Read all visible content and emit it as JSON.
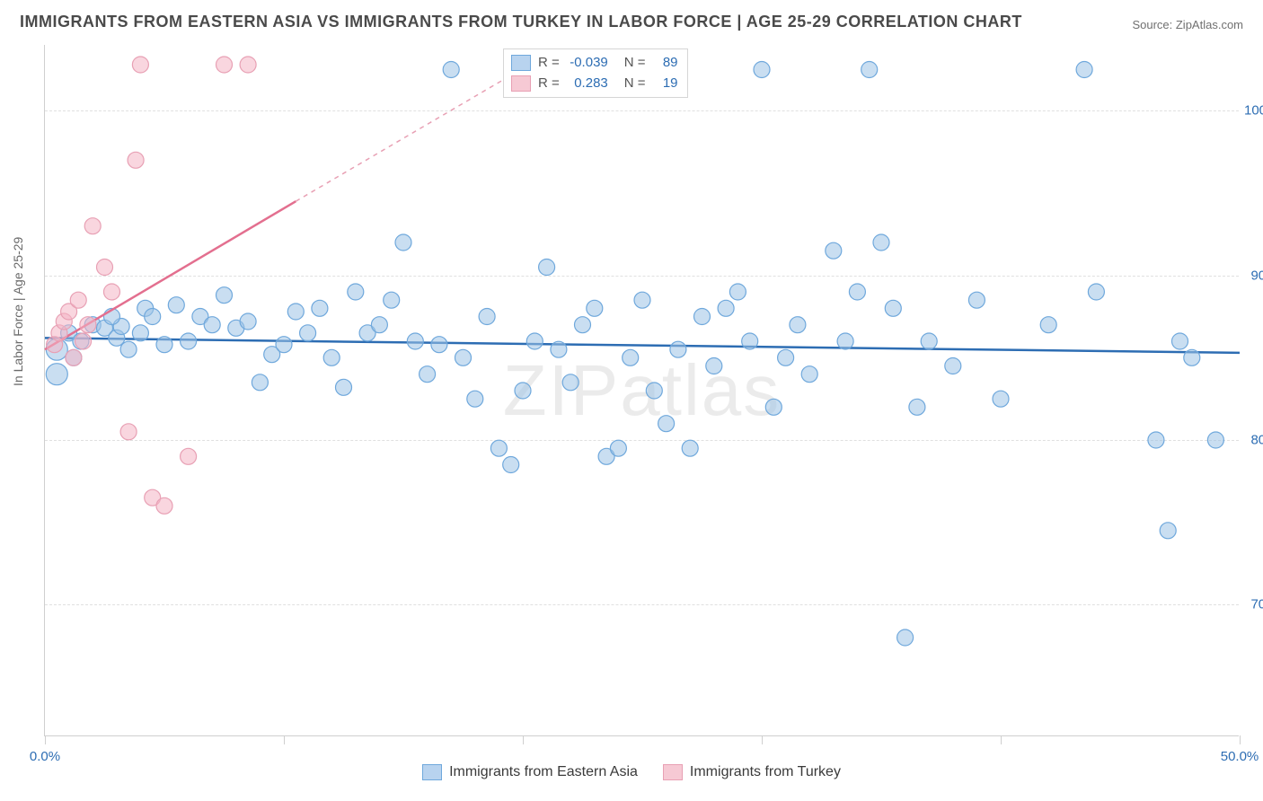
{
  "title": "IMMIGRANTS FROM EASTERN ASIA VS IMMIGRANTS FROM TURKEY IN LABOR FORCE | AGE 25-29 CORRELATION CHART",
  "source": "Source: ZipAtlas.com",
  "watermark": "ZIPatlas",
  "ylabel": "In Labor Force | Age 25-29",
  "chart": {
    "type": "scatter",
    "xlim": [
      0,
      50
    ],
    "ylim": [
      62,
      104
    ],
    "xticks": [
      0,
      10,
      20,
      30,
      40,
      50
    ],
    "xtick_labels": [
      "0.0%",
      "",
      "",
      "",
      "",
      "50.0%"
    ],
    "yticks": [
      70,
      80,
      90,
      100
    ],
    "ytick_labels": [
      "70.0%",
      "80.0%",
      "90.0%",
      "100.0%"
    ],
    "grid_color": "#e0e0e0",
    "axis_color": "#cfcfcf",
    "tick_label_color": "#2d6db3",
    "tick_label_fontsize": 15,
    "background_color": "#ffffff",
    "series": [
      {
        "name": "Immigrants from Eastern Asia",
        "color_fill": "rgba(157,195,230,0.55)",
        "color_stroke": "#6fa8dc",
        "swatch_fill": "#b8d3ef",
        "swatch_border": "#6fa8dc",
        "marker_r": 9,
        "R": "-0.039",
        "N": "89",
        "trend": {
          "x1": 0,
          "y1": 86.2,
          "x2": 50,
          "y2": 85.3,
          "color": "#2d6db3",
          "width": 2.5,
          "dash": ""
        },
        "points": [
          [
            0.5,
            85.5,
            12
          ],
          [
            0.5,
            84.0,
            12
          ],
          [
            1.0,
            86.5,
            9
          ],
          [
            1.5,
            86.0,
            9
          ],
          [
            2.0,
            87.0,
            9
          ],
          [
            2.5,
            86.8,
            9
          ],
          [
            3.0,
            86.2,
            9
          ],
          [
            3.2,
            86.9,
            9
          ],
          [
            3.5,
            85.5,
            9
          ],
          [
            4.0,
            86.5,
            9
          ],
          [
            4.2,
            88.0,
            9
          ],
          [
            4.5,
            87.5,
            9
          ],
          [
            5.0,
            85.8,
            9
          ],
          [
            5.5,
            88.2,
            9
          ],
          [
            6.0,
            86.0,
            9
          ],
          [
            6.5,
            87.5,
            9
          ],
          [
            7.0,
            87.0,
            9
          ],
          [
            7.5,
            88.8,
            9
          ],
          [
            8.0,
            86.8,
            9
          ],
          [
            8.5,
            87.2,
            9
          ],
          [
            9.0,
            83.5,
            9
          ],
          [
            9.5,
            85.2,
            9
          ],
          [
            10.0,
            85.8,
            9
          ],
          [
            10.5,
            87.8,
            9
          ],
          [
            11.0,
            86.5,
            9
          ],
          [
            11.5,
            88.0,
            9
          ],
          [
            12.0,
            85.0,
            9
          ],
          [
            12.5,
            83.2,
            9
          ],
          [
            13.0,
            89.0,
            9
          ],
          [
            13.5,
            86.5,
            9
          ],
          [
            14.0,
            87.0,
            9
          ],
          [
            14.5,
            88.5,
            9
          ],
          [
            15.0,
            92.0,
            9
          ],
          [
            15.5,
            86.0,
            9
          ],
          [
            16.0,
            84.0,
            9
          ],
          [
            16.5,
            85.8,
            9
          ],
          [
            17.0,
            102.5,
            9
          ],
          [
            17.5,
            85.0,
            9
          ],
          [
            18.0,
            82.5,
            9
          ],
          [
            18.5,
            87.5,
            9
          ],
          [
            19.0,
            79.5,
            9
          ],
          [
            19.5,
            78.5,
            9
          ],
          [
            20.0,
            83.0,
            9
          ],
          [
            20.5,
            86.0,
            9
          ],
          [
            21.0,
            90.5,
            9
          ],
          [
            21.5,
            85.5,
            9
          ],
          [
            22.0,
            83.5,
            9
          ],
          [
            22.5,
            87.0,
            9
          ],
          [
            23.0,
            88.0,
            9
          ],
          [
            23.5,
            79.0,
            9
          ],
          [
            24.0,
            79.5,
            9
          ],
          [
            24.5,
            85.0,
            9
          ],
          [
            25.0,
            88.5,
            9
          ],
          [
            25.5,
            83.0,
            9
          ],
          [
            26.0,
            81.0,
            9
          ],
          [
            26.5,
            85.5,
            9
          ],
          [
            27.0,
            79.5,
            9
          ],
          [
            27.5,
            87.5,
            9
          ],
          [
            28.0,
            84.5,
            9
          ],
          [
            28.5,
            88.0,
            9
          ],
          [
            29.0,
            89.0,
            9
          ],
          [
            29.5,
            86.0,
            9
          ],
          [
            30.0,
            102.5,
            9
          ],
          [
            30.5,
            82.0,
            9
          ],
          [
            31.0,
            85.0,
            9
          ],
          [
            31.5,
            87.0,
            9
          ],
          [
            32.0,
            84.0,
            9
          ],
          [
            33.0,
            91.5,
            9
          ],
          [
            33.5,
            86.0,
            9
          ],
          [
            34.0,
            89.0,
            9
          ],
          [
            34.5,
            102.5,
            9
          ],
          [
            35.0,
            92.0,
            9
          ],
          [
            35.5,
            88.0,
            9
          ],
          [
            36.0,
            68.0,
            9
          ],
          [
            36.5,
            82.0,
            9
          ],
          [
            37.0,
            86.0,
            9
          ],
          [
            38.0,
            84.5,
            9
          ],
          [
            39.0,
            88.5,
            9
          ],
          [
            40.0,
            82.5,
            9
          ],
          [
            42.0,
            87.0,
            9
          ],
          [
            43.5,
            102.5,
            9
          ],
          [
            44.0,
            89.0,
            9
          ],
          [
            46.5,
            80.0,
            9
          ],
          [
            47.0,
            74.5,
            9
          ],
          [
            47.5,
            86.0,
            9
          ],
          [
            48.0,
            85.0,
            9
          ],
          [
            49.0,
            80.0,
            9
          ],
          [
            1.2,
            85.0,
            9
          ],
          [
            2.8,
            87.5,
            9
          ]
        ]
      },
      {
        "name": "Immigrants from Turkey",
        "color_fill": "rgba(244,180,196,0.55)",
        "color_stroke": "#e8a0b4",
        "swatch_fill": "#f6c9d4",
        "swatch_border": "#e8a0b4",
        "marker_r": 9,
        "R": "0.283",
        "N": "19",
        "trend": {
          "x1": 0,
          "y1": 85.5,
          "x2": 10.5,
          "y2": 94.5,
          "color": "#e36f8f",
          "width": 2.5,
          "dash": ""
        },
        "trend_ext": {
          "x1": 10.5,
          "y1": 94.5,
          "x2": 20.5,
          "y2": 103.0,
          "color": "#e8a0b4",
          "width": 1.5,
          "dash": "5,5"
        },
        "points": [
          [
            0.4,
            85.8,
            9
          ],
          [
            0.6,
            86.5,
            9
          ],
          [
            0.8,
            87.2,
            9
          ],
          [
            1.0,
            87.8,
            9
          ],
          [
            1.2,
            85.0,
            9
          ],
          [
            1.4,
            88.5,
            9
          ],
          [
            1.6,
            86.0,
            9
          ],
          [
            1.8,
            87.0,
            9
          ],
          [
            2.0,
            93.0,
            9
          ],
          [
            2.5,
            90.5,
            9
          ],
          [
            2.8,
            89.0,
            9
          ],
          [
            3.5,
            80.5,
            9
          ],
          [
            3.8,
            97.0,
            9
          ],
          [
            4.0,
            102.8,
            9
          ],
          [
            4.5,
            76.5,
            9
          ],
          [
            5.0,
            76.0,
            9
          ],
          [
            6.0,
            79.0,
            9
          ],
          [
            7.5,
            102.8,
            9
          ],
          [
            8.5,
            102.8,
            9
          ]
        ]
      }
    ]
  },
  "legend_top": {
    "rows": [
      {
        "swatch": 0,
        "r_label": "R =",
        "r_val": "-0.039",
        "n_label": "N =",
        "n_val": "89"
      },
      {
        "swatch": 1,
        "r_label": "R =",
        "r_val": "0.283",
        "n_label": "N =",
        "n_val": "19"
      }
    ]
  },
  "legend_bottom": {
    "items": [
      {
        "swatch": 0,
        "label": "Immigrants from Eastern Asia"
      },
      {
        "swatch": 1,
        "label": "Immigrants from Turkey"
      }
    ]
  }
}
